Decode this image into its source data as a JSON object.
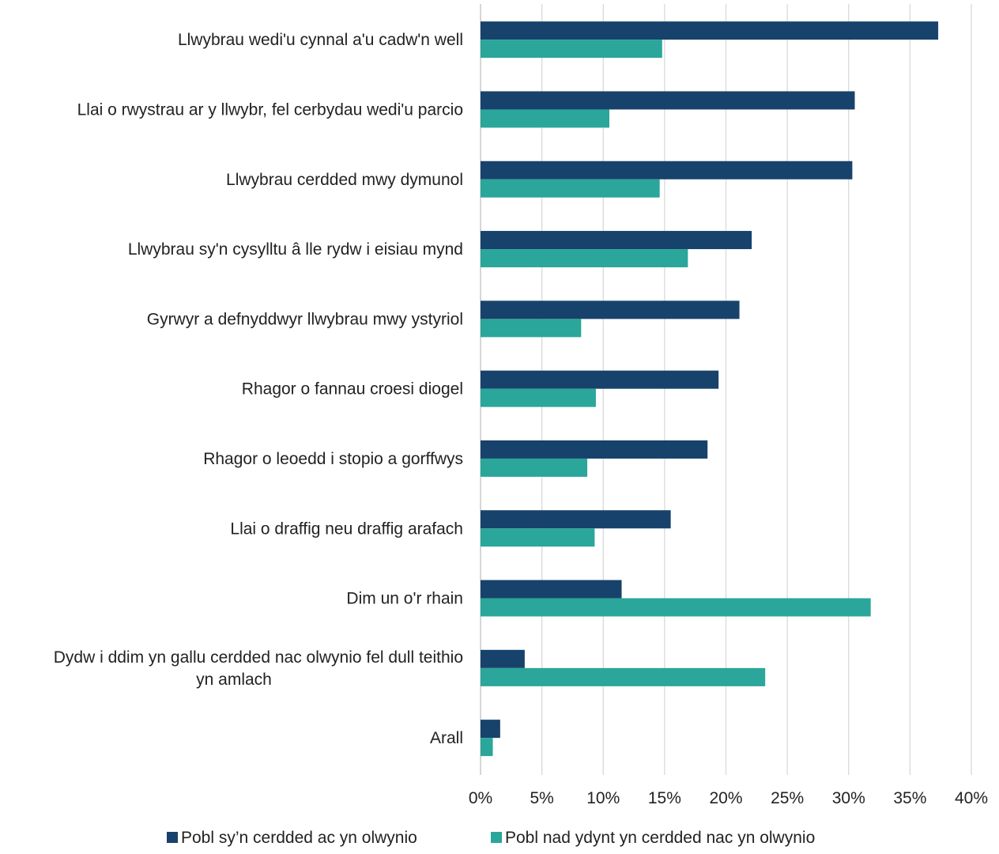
{
  "chart_data": {
    "type": "bar",
    "orientation": "horizontal",
    "categories": [
      [
        "Llwybrau wedi'u cynnal a'u cadw'n well"
      ],
      [
        "Llai o rwystrau ar y llwybr, fel cerbydau wedi'u parcio"
      ],
      [
        "Llwybrau cerdded mwy dymunol"
      ],
      [
        "Llwybrau sy'n cysylltu â lle rydw i eisiau mynd"
      ],
      [
        "Gyrwyr a defnyddwyr llwybrau mwy ystyriol"
      ],
      [
        "Rhagor o fannau croesi diogel"
      ],
      [
        "Rhagor o leoedd i stopio a gorffwys"
      ],
      [
        "Llai o draffig neu draffig arafach"
      ],
      [
        "Dim un o'r rhain"
      ],
      [
        "Dydw i ddim yn gallu cerdded nac olwynio fel dull teithio",
        "yn amlach"
      ],
      [
        "Arall"
      ]
    ],
    "series": [
      {
        "name": "Pobl sy’n cerdded ac yn olwynio",
        "color": "#17426b",
        "values": [
          37.3,
          30.5,
          30.3,
          22.1,
          21.1,
          19.4,
          18.5,
          15.5,
          11.5,
          3.6,
          1.6
        ]
      },
      {
        "name": "Pobl nad ydynt yn cerdded nac yn olwynio",
        "color": "#2aa69a",
        "values": [
          14.8,
          10.5,
          14.6,
          16.9,
          8.2,
          9.4,
          8.7,
          9.3,
          31.8,
          23.2,
          1.0
        ]
      }
    ],
    "xlim": [
      0,
      40
    ],
    "xticks": [
      "0%",
      "5%",
      "10%",
      "15%",
      "20%",
      "25%",
      "30%",
      "35%",
      "40%"
    ],
    "grid": true,
    "grid_color": "#d9d9d9",
    "legend_position": "bottom"
  }
}
